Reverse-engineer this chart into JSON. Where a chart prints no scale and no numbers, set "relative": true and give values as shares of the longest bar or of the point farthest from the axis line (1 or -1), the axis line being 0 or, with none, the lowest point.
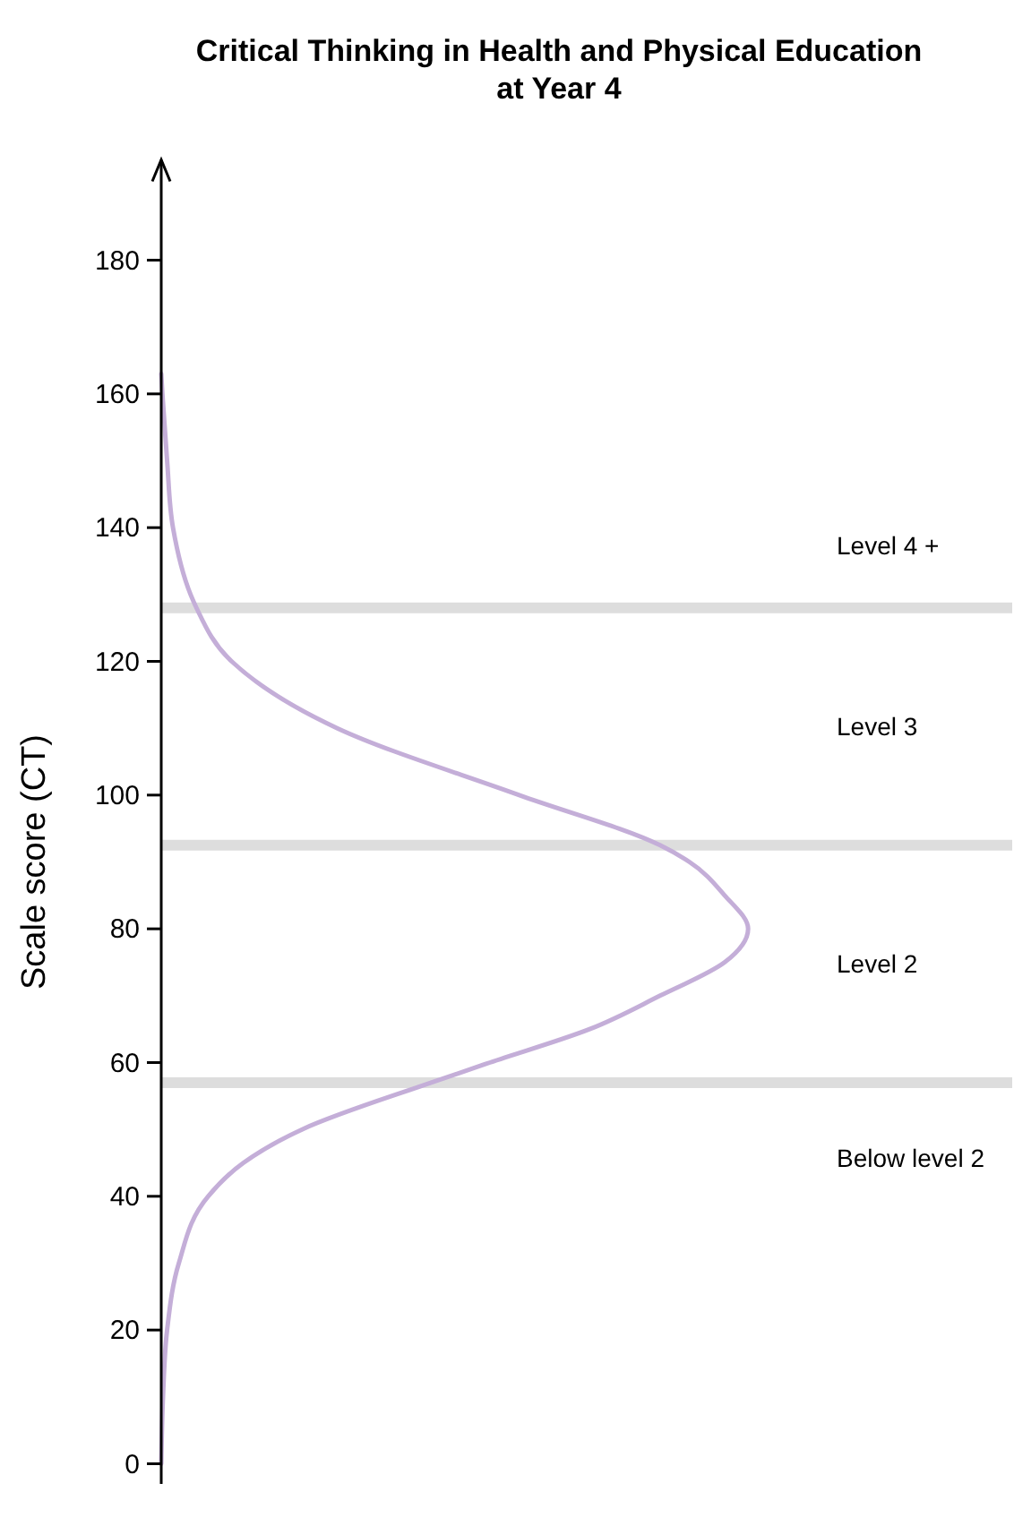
{
  "chart_data": {
    "type": "line",
    "orientation": "horizontal",
    "relative": true,
    "title": "Critical Thinking in Health and Physical Education at Year 4",
    "ylabel": "Scale score (CT)",
    "ylim": [
      -3,
      195
    ],
    "yticks": [
      0,
      20,
      40,
      60,
      80,
      100,
      120,
      140,
      160,
      180
    ],
    "grid": false,
    "marker": "none",
    "line_style": "solid",
    "series": [
      {
        "color": "#c4aed8",
        "x": [
          0,
          10,
          20,
          30,
          40,
          45,
          50,
          57,
          60,
          65,
          70,
          75,
          80,
          85,
          90,
          92.5,
          100,
          110,
          120,
          128,
          130,
          140,
          150,
          160,
          163
        ],
        "values": [
          0,
          0.003,
          0.01,
          0.03,
          0.08,
          0.14,
          0.24,
          0.46,
          0.56,
          0.73,
          0.85,
          0.96,
          1,
          0.96,
          0.9,
          0.85,
          0.61,
          0.3,
          0.12,
          0.06,
          0.05,
          0.02,
          0.01,
          0.002,
          0
        ]
      }
    ],
    "ref_lines": [
      {
        "axis": "y",
        "value": 128,
        "color": "#dddddd"
      },
      {
        "axis": "y",
        "value": 92.5,
        "color": "#dddddd"
      },
      {
        "axis": "y",
        "value": 57,
        "color": "#dddddd"
      }
    ],
    "annotations": [
      "Level 4 +",
      "Level 3",
      "Level 2",
      "Below level 2"
    ]
  }
}
